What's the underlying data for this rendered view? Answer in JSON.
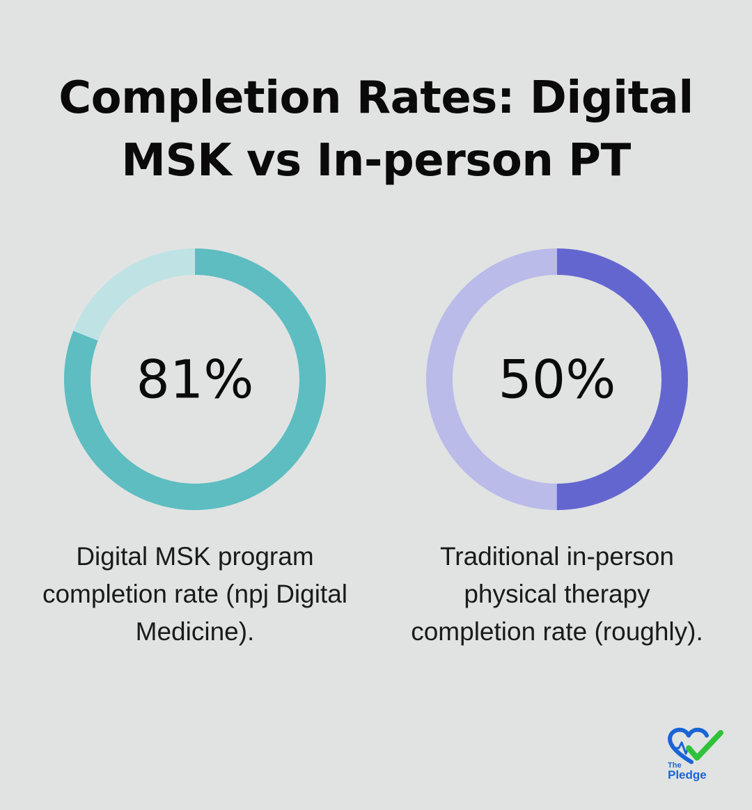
{
  "title": "Completion Rates: Digital MSK vs In-person PT",
  "colors": {
    "background": "#e1e3e2",
    "digital_fill": "#5dbdc1",
    "digital_track": "#bfe3e5",
    "inperson_fill": "#6466d0",
    "inperson_track": "#babbe9"
  },
  "chart_data": [
    {
      "type": "pie",
      "style": "donut",
      "value": 81,
      "max": 100,
      "center_label": "81%",
      "caption": "Digital MSK program completion rate (npj Digital Medicine)."
    },
    {
      "type": "pie",
      "style": "donut",
      "value": 50,
      "max": 100,
      "center_label": "50%",
      "caption": "Traditional in-person physical therapy completion rate (roughly)."
    }
  ],
  "logo": {
    "line1": "The",
    "line2": "Pledge",
    "icon": "heart-check-icon"
  }
}
